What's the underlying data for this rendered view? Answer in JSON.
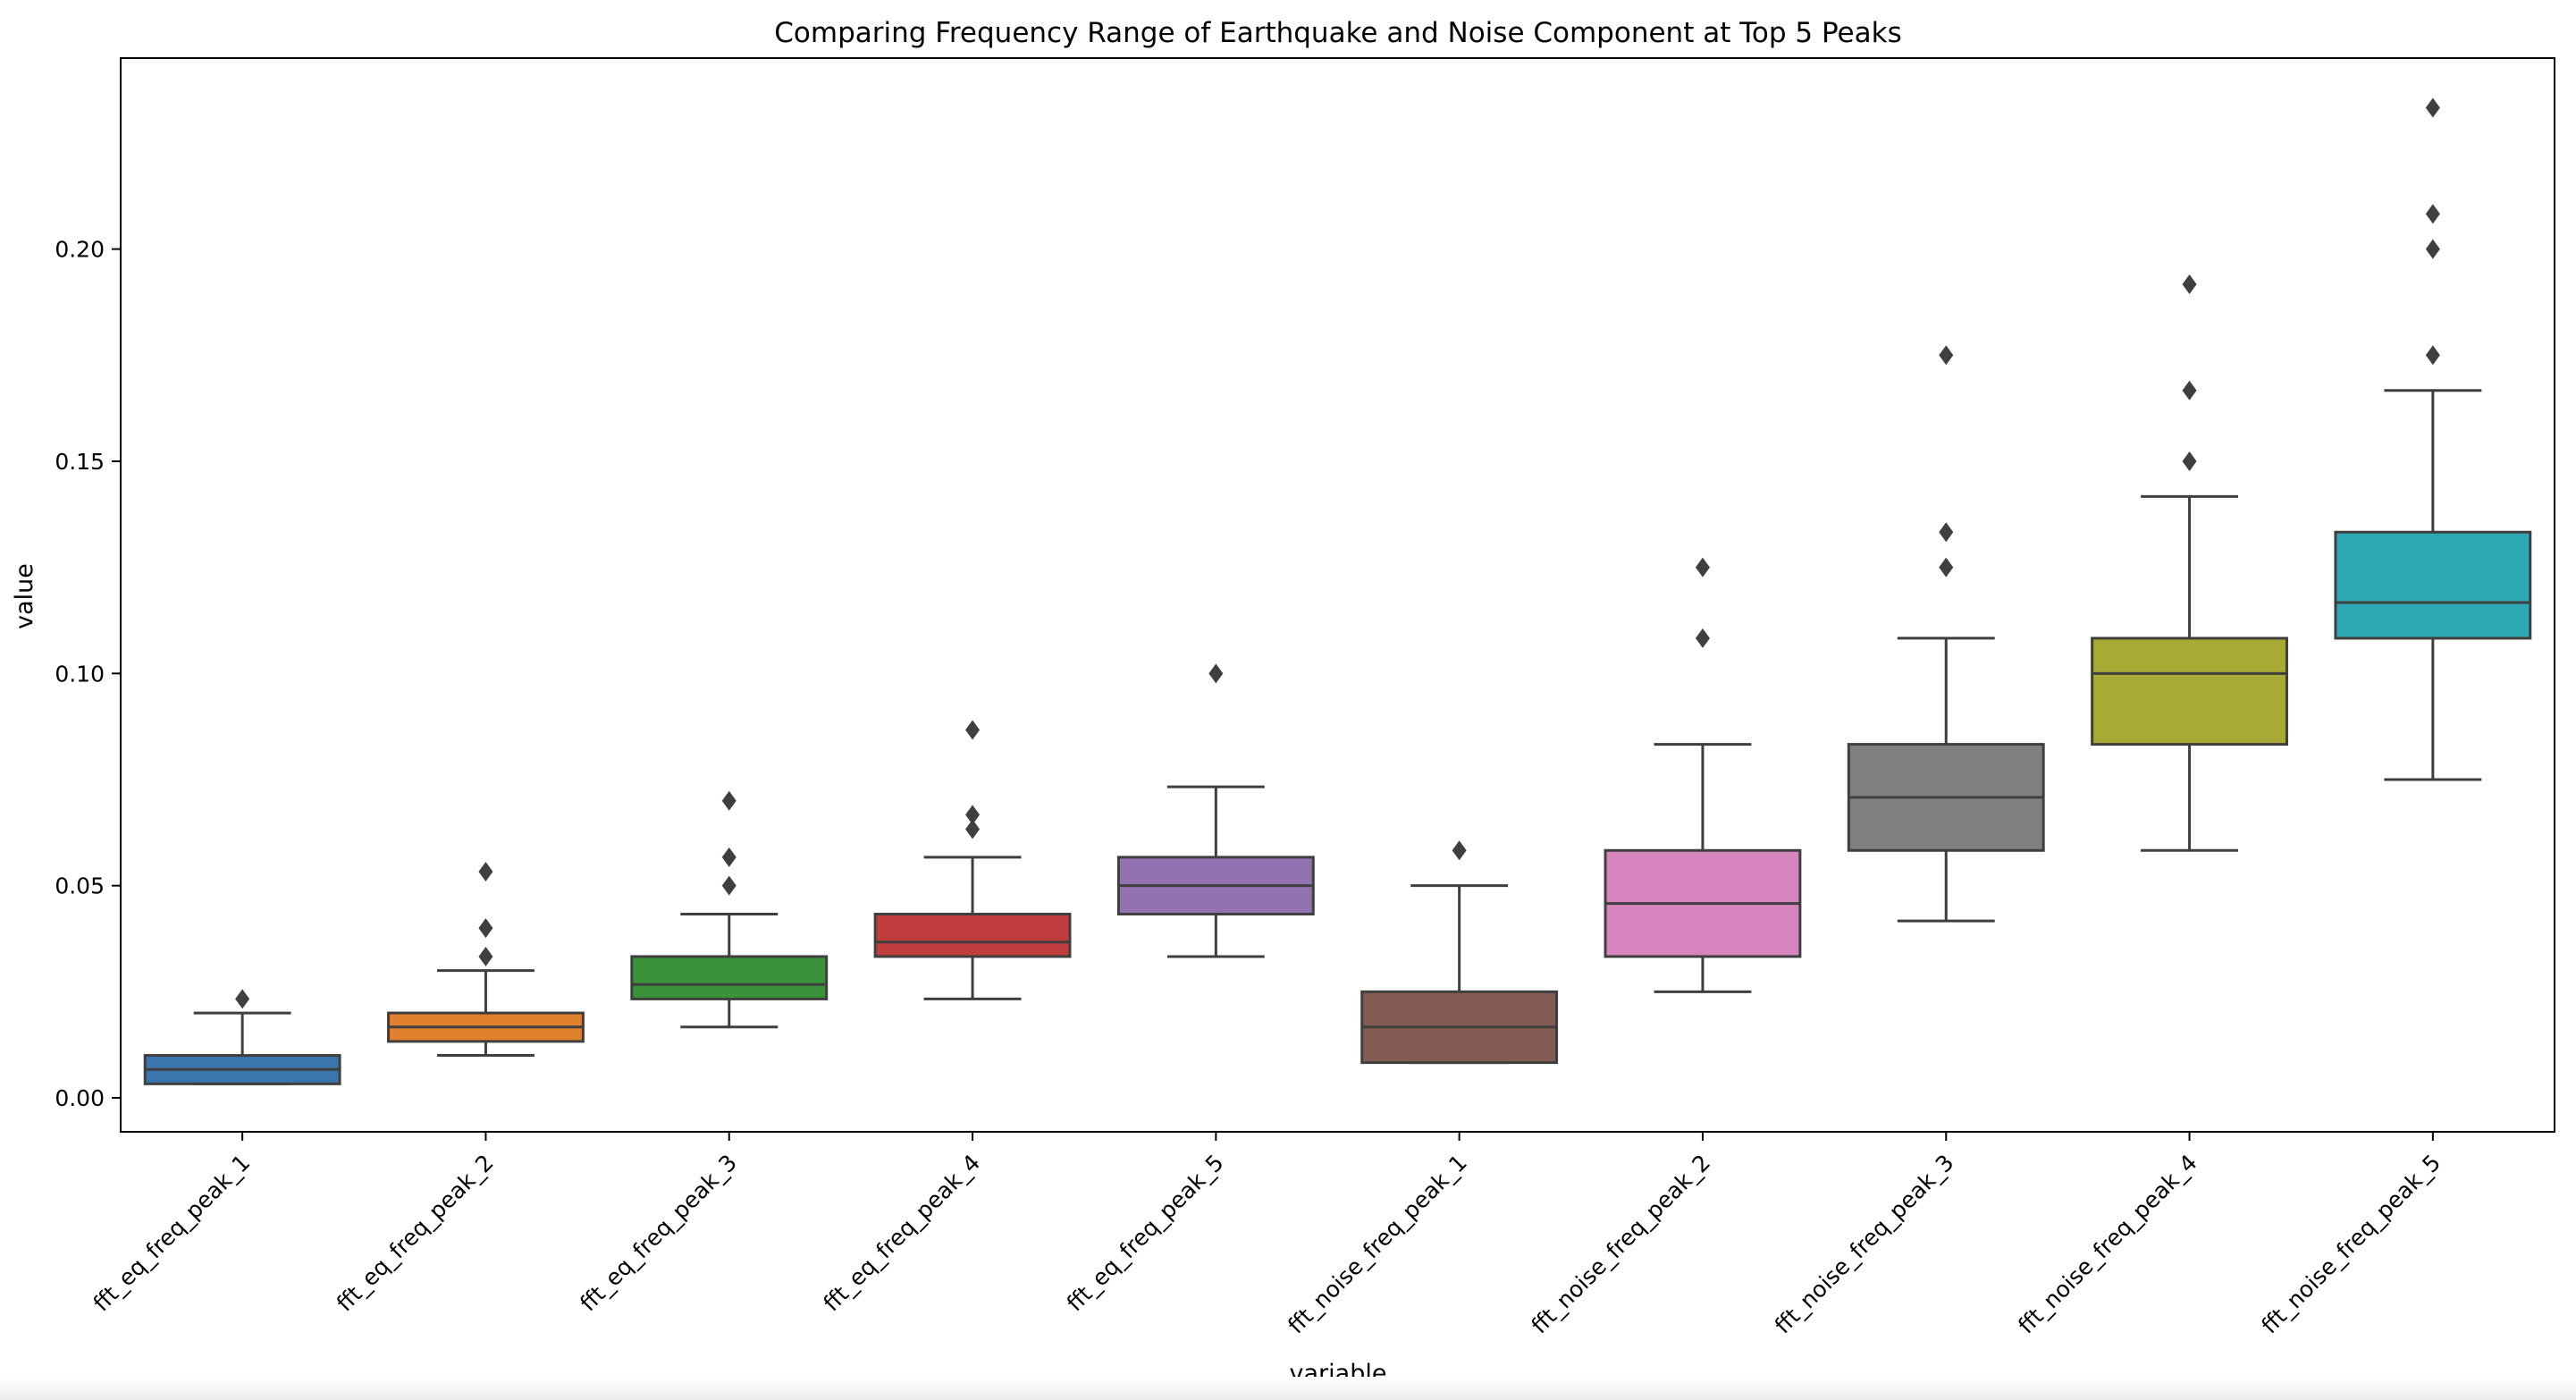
{
  "chart_data": {
    "type": "box",
    "title": "Comparing Frequency Range of Earthquake and Noise Component at Top 5 Peaks",
    "xlabel": "variable",
    "ylabel": "value",
    "ylim": [
      -0.008,
      0.245
    ],
    "yticks": [
      0.0,
      0.05,
      0.1,
      0.15,
      0.2
    ],
    "ytick_labels": [
      "0.00",
      "0.05",
      "0.10",
      "0.15",
      "0.20"
    ],
    "grid": false,
    "categories": [
      "fft_eq_freq_peak_1",
      "fft_eq_freq_peak_2",
      "fft_eq_freq_peak_3",
      "fft_eq_freq_peak_4",
      "fft_eq_freq_peak_5",
      "fft_noise_freq_peak_1",
      "fft_noise_freq_peak_2",
      "fft_noise_freq_peak_3",
      "fft_noise_freq_peak_4",
      "fft_noise_freq_peak_5"
    ],
    "boxes": [
      {
        "whisker_low": 0.0033,
        "q1": 0.0033,
        "median": 0.0067,
        "q3": 0.01,
        "whisker_high": 0.02,
        "outliers": [
          0.0233
        ],
        "color": "#3a75ae"
      },
      {
        "whisker_low": 0.01,
        "q1": 0.0133,
        "median": 0.0167,
        "q3": 0.02,
        "whisker_high": 0.03,
        "outliers": [
          0.0333,
          0.04,
          0.0533
        ],
        "color": "#e1812b"
      },
      {
        "whisker_low": 0.0167,
        "q1": 0.0233,
        "median": 0.0267,
        "q3": 0.0333,
        "whisker_high": 0.0433,
        "outliers": [
          0.05,
          0.0567,
          0.07
        ],
        "color": "#3a923a"
      },
      {
        "whisker_low": 0.0233,
        "q1": 0.0333,
        "median": 0.0367,
        "q3": 0.0433,
        "whisker_high": 0.0567,
        "outliers": [
          0.0633,
          0.0667,
          0.0867
        ],
        "color": "#c03d3e"
      },
      {
        "whisker_low": 0.0333,
        "q1": 0.0433,
        "median": 0.05,
        "q3": 0.0567,
        "whisker_high": 0.0733,
        "outliers": [
          0.1
        ],
        "color": "#9372b2"
      },
      {
        "whisker_low": 0.0083,
        "q1": 0.0083,
        "median": 0.0167,
        "q3": 0.025,
        "whisker_high": 0.05,
        "outliers": [
          0.0583
        ],
        "color": "#845b53"
      },
      {
        "whisker_low": 0.025,
        "q1": 0.0333,
        "median": 0.0458,
        "q3": 0.0583,
        "whisker_high": 0.0833,
        "outliers": [
          0.1083,
          0.125
        ],
        "color": "#d684bd"
      },
      {
        "whisker_low": 0.0417,
        "q1": 0.0583,
        "median": 0.0708,
        "q3": 0.0833,
        "whisker_high": 0.1083,
        "outliers": [
          0.125,
          0.1333,
          0.175
        ],
        "color": "#7f7f7f"
      },
      {
        "whisker_low": 0.0583,
        "q1": 0.0833,
        "median": 0.1,
        "q3": 0.1083,
        "whisker_high": 0.1417,
        "outliers": [
          0.15,
          0.1667,
          0.1917
        ],
        "color": "#a9aa35"
      },
      {
        "whisker_low": 0.075,
        "q1": 0.1083,
        "median": 0.1167,
        "q3": 0.1333,
        "whisker_high": 0.1667,
        "outliers": [
          0.175,
          0.2,
          0.2083,
          0.2333
        ],
        "color": "#2ea8b4"
      }
    ]
  }
}
